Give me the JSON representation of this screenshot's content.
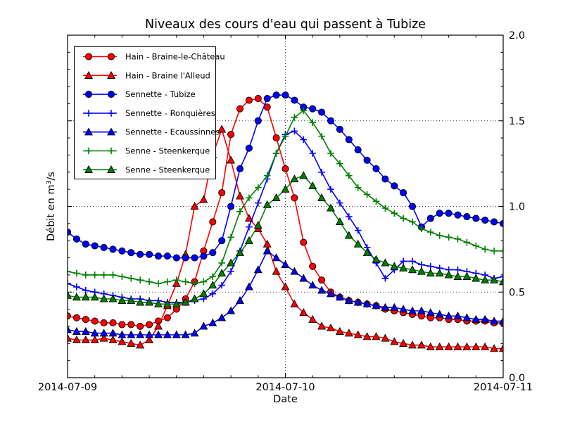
{
  "figure": {
    "title": "Niveaux des cours d'eau qui passent à Tubize",
    "xlabel": "Date",
    "ylabel": "Débit en m³/s"
  },
  "chart_data": {
    "type": "line",
    "title": "Niveaux des cours d'eau qui passent à Tubize",
    "xlabel": "Date",
    "ylabel": "Débit en m³/s",
    "grid": "dotted",
    "legend_position": "upper-left",
    "x_unit": "hours from 2014-07-09 00:00, hourly samples",
    "xlim_hours": [
      0,
      48
    ],
    "ylim": [
      0.0,
      2.0
    ],
    "x_tick_hours": [
      0,
      24,
      48
    ],
    "x_tick_labels": [
      "2014-07-09",
      "2014-07-10",
      "2014-07-11"
    ],
    "x_minor_step_hours": 3,
    "y_ticks": [
      0.0,
      0.5,
      1.0,
      1.5,
      2.0
    ],
    "y_tick_labels": [
      "0.0",
      "0.5",
      "1.0",
      "1.5",
      "2.0"
    ],
    "y_minor_step": 0.1,
    "grid_y_values": [
      0.5,
      1.0,
      1.5
    ],
    "grid_x_hours": [
      24
    ],
    "series": [
      {
        "name": "Hain - Braine-le-Château",
        "color": "#ff0000",
        "marker": "circle",
        "values": [
          0.36,
          0.35,
          0.34,
          0.33,
          0.32,
          0.32,
          0.31,
          0.31,
          0.3,
          0.31,
          0.33,
          0.35,
          0.4,
          0.46,
          0.56,
          0.74,
          0.91,
          1.08,
          1.42,
          1.57,
          1.62,
          1.63,
          1.58,
          1.4,
          1.22,
          1.05,
          0.79,
          0.65,
          0.57,
          0.5,
          0.47,
          0.45,
          0.44,
          0.43,
          0.42,
          0.4,
          0.39,
          0.38,
          0.37,
          0.36,
          0.35,
          0.35,
          0.34,
          0.34,
          0.33,
          0.33,
          0.33,
          0.32,
          0.32
        ]
      },
      {
        "name": "Hain - Braine l'Alleud",
        "color": "#ff0000",
        "marker": "triangle",
        "values": [
          0.23,
          0.22,
          0.22,
          0.22,
          0.23,
          0.22,
          0.21,
          0.2,
          0.19,
          0.22,
          0.3,
          0.42,
          0.55,
          0.72,
          1.0,
          1.04,
          1.3,
          1.45,
          1.27,
          1.06,
          0.93,
          0.87,
          0.78,
          0.62,
          0.53,
          0.43,
          0.38,
          0.34,
          0.3,
          0.29,
          0.27,
          0.26,
          0.25,
          0.24,
          0.24,
          0.23,
          0.21,
          0.2,
          0.19,
          0.19,
          0.18,
          0.18,
          0.18,
          0.18,
          0.18,
          0.18,
          0.18,
          0.17,
          0.17
        ]
      },
      {
        "name": "Sennette - Tubize",
        "color": "#0000ff",
        "marker": "circle",
        "values": [
          0.85,
          0.81,
          0.78,
          0.77,
          0.76,
          0.75,
          0.74,
          0.73,
          0.72,
          0.72,
          0.71,
          0.71,
          0.7,
          0.7,
          0.7,
          0.71,
          0.73,
          0.8,
          1.0,
          1.22,
          1.34,
          1.5,
          1.63,
          1.65,
          1.65,
          1.62,
          1.58,
          1.57,
          1.55,
          1.5,
          1.45,
          1.39,
          1.33,
          1.27,
          1.22,
          1.16,
          1.12,
          1.08,
          1.0,
          0.88,
          0.93,
          0.96,
          0.96,
          0.95,
          0.94,
          0.93,
          0.92,
          0.91,
          0.9
        ]
      },
      {
        "name": "Sennette - Ronquières",
        "color": "#0000ff",
        "marker": "plus",
        "values": [
          0.55,
          0.53,
          0.51,
          0.5,
          0.49,
          0.48,
          0.47,
          0.46,
          0.46,
          0.45,
          0.45,
          0.44,
          0.44,
          0.44,
          0.45,
          0.46,
          0.49,
          0.54,
          0.62,
          0.74,
          0.88,
          1.02,
          1.16,
          1.31,
          1.42,
          1.44,
          1.39,
          1.31,
          1.2,
          1.1,
          1.02,
          0.94,
          0.86,
          0.76,
          0.67,
          0.58,
          0.63,
          0.68,
          0.68,
          0.66,
          0.65,
          0.64,
          0.63,
          0.63,
          0.62,
          0.61,
          0.6,
          0.58,
          0.59
        ]
      },
      {
        "name": "Sennette - Ecaussinnes",
        "color": "#0000ff",
        "marker": "triangle",
        "values": [
          0.28,
          0.27,
          0.27,
          0.26,
          0.26,
          0.26,
          0.25,
          0.25,
          0.25,
          0.25,
          0.25,
          0.25,
          0.25,
          0.25,
          0.26,
          0.3,
          0.32,
          0.35,
          0.39,
          0.45,
          0.53,
          0.63,
          0.74,
          0.7,
          0.66,
          0.62,
          0.58,
          0.54,
          0.51,
          0.49,
          0.47,
          0.45,
          0.44,
          0.43,
          0.42,
          0.41,
          0.41,
          0.4,
          0.39,
          0.39,
          0.38,
          0.37,
          0.36,
          0.36,
          0.35,
          0.34,
          0.34,
          0.33,
          0.33
        ]
      },
      {
        "name": "Senne - Steenkerque",
        "color": "#008000",
        "marker": "plus",
        "values": [
          0.62,
          0.61,
          0.6,
          0.6,
          0.6,
          0.6,
          0.59,
          0.58,
          0.57,
          0.56,
          0.55,
          0.56,
          0.57,
          0.56,
          0.55,
          0.56,
          0.59,
          0.67,
          0.82,
          0.97,
          1.05,
          1.11,
          1.18,
          1.31,
          1.41,
          1.52,
          1.56,
          1.49,
          1.41,
          1.31,
          1.25,
          1.18,
          1.11,
          1.07,
          1.03,
          0.99,
          0.96,
          0.93,
          0.91,
          0.87,
          0.85,
          0.83,
          0.82,
          0.81,
          0.79,
          0.77,
          0.75,
          0.74,
          0.74
        ]
      },
      {
        "name": "Senne - Steenkerque",
        "color": "#008000",
        "marker": "triangle",
        "values": [
          0.48,
          0.47,
          0.47,
          0.47,
          0.46,
          0.46,
          0.45,
          0.45,
          0.44,
          0.44,
          0.43,
          0.43,
          0.43,
          0.44,
          0.46,
          0.49,
          0.54,
          0.61,
          0.67,
          0.73,
          0.8,
          0.89,
          1.01,
          1.05,
          1.1,
          1.16,
          1.18,
          1.12,
          1.05,
          0.99,
          0.91,
          0.83,
          0.78,
          0.73,
          0.69,
          0.67,
          0.65,
          0.64,
          0.63,
          0.62,
          0.61,
          0.61,
          0.6,
          0.59,
          0.59,
          0.58,
          0.57,
          0.57,
          0.56
        ]
      }
    ]
  }
}
